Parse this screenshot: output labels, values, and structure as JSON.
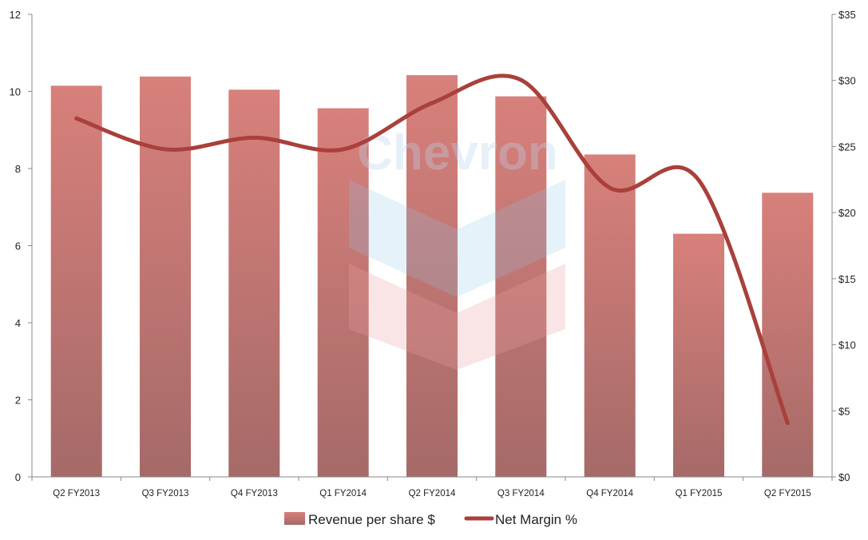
{
  "chart_data": {
    "type": "bar",
    "title": "",
    "xlabel": "",
    "ylabel": "",
    "categories": [
      "Q2 FY2013",
      "Q3 FY2013",
      "Q4 FY2013",
      "Q1 FY2014",
      "Q2 FY2014",
      "Q3 FY2014",
      "Q4 FY2014",
      "Q1 FY2015",
      "Q2 FY2015"
    ],
    "series": [
      {
        "name": "Revenue per share $",
        "type": "bar",
        "axis": "right",
        "values": [
          29.6,
          30.3,
          29.3,
          27.9,
          30.4,
          28.8,
          24.4,
          18.4,
          21.5
        ],
        "color": "#d9817c"
      },
      {
        "name": "Net Margin %",
        "type": "line",
        "axis": "left",
        "values": [
          9.3,
          8.5,
          8.8,
          8.5,
          9.7,
          10.3,
          7.5,
          7.7,
          1.4
        ],
        "color": "#a9403b"
      }
    ],
    "y_left": {
      "min": 0,
      "max": 12,
      "ticks": [
        "0",
        "2",
        "4",
        "6",
        "8",
        "10",
        "12"
      ]
    },
    "y_right": {
      "min": 0,
      "max": 35,
      "ticks": [
        "$0",
        "$5",
        "$10",
        "$15",
        "$20",
        "$25",
        "$30",
        "$35"
      ]
    },
    "grid": false,
    "legend": "bottom",
    "watermark": {
      "text": "Chevron",
      "kind": "logo"
    }
  }
}
